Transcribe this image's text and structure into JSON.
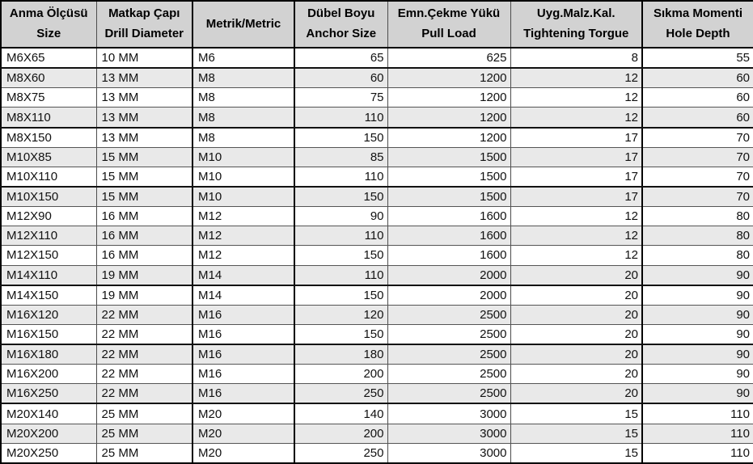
{
  "table": {
    "headers": [
      {
        "line1": "Anma Ölçüsü",
        "line2": "Size"
      },
      {
        "line1": "Matkap Çapı",
        "line2": "Drill Diameter"
      },
      {
        "line1": "Metrik/Metric",
        "line2": ""
      },
      {
        "line1": "Dübel Boyu",
        "line2": "Anchor Size"
      },
      {
        "line1": "Emn.Çekme Yükü",
        "line2": "Pull Load"
      },
      {
        "line1": "Uyg.Malz.Kal.",
        "line2": "Tightening Torgue"
      },
      {
        "line1": "Sıkma Momenti",
        "line2": "Hole Depth"
      }
    ],
    "rows": [
      [
        "M6X65",
        "10 MM",
        "M6",
        "65",
        "625",
        "8",
        "55"
      ],
      [
        "M8X60",
        "13 MM",
        "M8",
        "60",
        "1200",
        "12",
        "60"
      ],
      [
        "M8X75",
        "13 MM",
        "M8",
        "75",
        "1200",
        "12",
        "60"
      ],
      [
        "M8X110",
        "13 MM",
        "M8",
        "110",
        "1200",
        "12",
        "60"
      ],
      [
        "M8X150",
        "13 MM",
        "M8",
        "150",
        "1200",
        "17",
        "70"
      ],
      [
        "M10X85",
        "15 MM",
        "M10",
        "85",
        "1500",
        "17",
        "70"
      ],
      [
        "M10X110",
        "15 MM",
        "M10",
        "110",
        "1500",
        "17",
        "70"
      ],
      [
        "M10X150",
        "15 MM",
        "M10",
        "150",
        "1500",
        "17",
        "70"
      ],
      [
        "M12X90",
        "16 MM",
        "M12",
        "90",
        "1600",
        "12",
        "80"
      ],
      [
        "M12X110",
        "16 MM",
        "M12",
        "110",
        "1600",
        "12",
        "80"
      ],
      [
        "M12X150",
        "16 MM",
        "M12",
        "150",
        "1600",
        "12",
        "80"
      ],
      [
        "M14X110",
        "19 MM",
        "M14",
        "110",
        "2000",
        "20",
        "90"
      ],
      [
        "M14X150",
        "19 MM",
        "M14",
        "150",
        "2000",
        "20",
        "90"
      ],
      [
        "M16X120",
        "22 MM",
        "M16",
        "120",
        "2500",
        "20",
        "90"
      ],
      [
        "M16X150",
        "22 MM",
        "M16",
        "150",
        "2500",
        "20",
        "90"
      ],
      [
        "M16X180",
        "22 MM",
        "M16",
        "180",
        "2500",
        "20",
        "90"
      ],
      [
        "M16X200",
        "22 MM",
        "M16",
        "200",
        "2500",
        "20",
        "90"
      ],
      [
        "M16X250",
        "22 MM",
        "M16",
        "250",
        "2500",
        "20",
        "90"
      ],
      [
        "M20X140",
        "25 MM",
        "M20",
        "140",
        "3000",
        "15",
        "110"
      ],
      [
        "M20X200",
        "25 MM",
        "M20",
        "200",
        "3000",
        "15",
        "110"
      ],
      [
        "M20X250",
        "25 MM",
        "M20",
        "250",
        "3000",
        "15",
        "110"
      ]
    ],
    "thick_border_after_rows": [
      0,
      3,
      6,
      11,
      14,
      17
    ],
    "left_aligned_columns": 3
  },
  "colors": {
    "header_bg": "#d2d2d2",
    "row_alt_bg": "#e9e9e9",
    "grid_thin": "#555555",
    "grid_thick": "#000000",
    "text": "#111111"
  }
}
